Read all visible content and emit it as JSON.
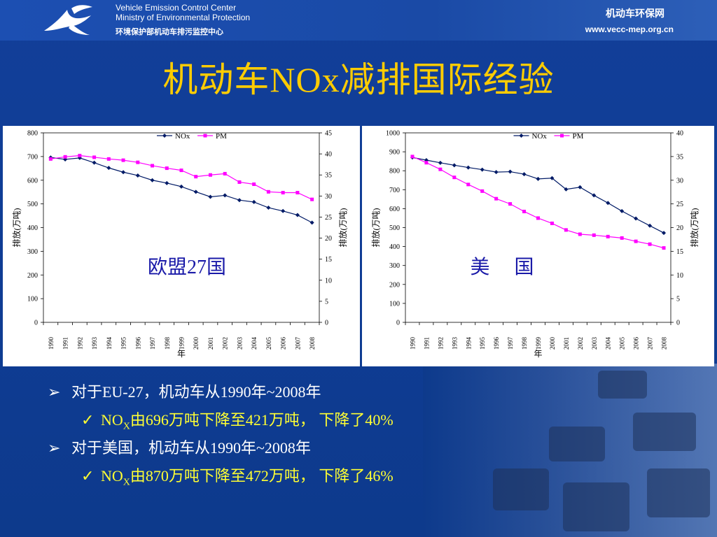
{
  "header": {
    "org_en_1": "Vehicle Emission Control Center",
    "org_en_2": "Ministry of Environmental Protection",
    "org_cn": "环境保护部机动车排污监控中心",
    "site_name": "机动车环保网",
    "site_url": "www.vecc-mep.org.cn"
  },
  "title": "机动车NOx减排国际经验",
  "colors": {
    "nox": "#001a66",
    "pm": "#ff00ff",
    "title": "#ffcc00",
    "region_label": "#1a1aa8"
  },
  "chart_data": [
    {
      "type": "line",
      "region_label": "欧盟27国",
      "x": [
        "1990",
        "1991",
        "1992",
        "1993",
        "1994",
        "1995",
        "1996",
        "1997",
        "1998",
        "1999",
        "2000",
        "2001",
        "2002",
        "2003",
        "2004",
        "2005",
        "2006",
        "2007",
        "2008"
      ],
      "xlabel": "年",
      "ylabel_left": "排放(万吨)",
      "ylabel_right": "排放(万吨)",
      "ylim_left": [
        0,
        800
      ],
      "yticks_left": [
        0,
        100,
        200,
        300,
        400,
        500,
        600,
        700,
        800
      ],
      "ylim_right": [
        0,
        45
      ],
      "yticks_right": [
        0,
        5,
        10,
        15,
        20,
        25,
        30,
        35,
        40,
        45
      ],
      "legend": "top-center",
      "series": [
        {
          "name": "NOx",
          "axis": "left",
          "values": [
            696,
            688,
            694,
            674,
            652,
            634,
            620,
            600,
            588,
            573,
            551,
            530,
            536,
            516,
            508,
            484,
            470,
            453,
            421
          ]
        },
        {
          "name": "PM",
          "axis": "right",
          "values": [
            38.8,
            39.3,
            39.6,
            39.2,
            38.8,
            38.5,
            38.0,
            37.2,
            36.6,
            36.1,
            34.6,
            35.0,
            35.3,
            33.3,
            32.8,
            31.0,
            30.8,
            30.8,
            29.2
          ]
        }
      ]
    },
    {
      "type": "line",
      "region_label": "美　 国",
      "x": [
        "1990",
        "1991",
        "1992",
        "1993",
        "1994",
        "1995",
        "1996",
        "1997",
        "1998",
        "1999",
        "2000",
        "2001",
        "2002",
        "2003",
        "2004",
        "2005",
        "2006",
        "2007",
        "2008"
      ],
      "xlabel": "年",
      "ylabel_left": "排放(万吨)",
      "ylabel_right": "排放(万吨)",
      "ylim_left": [
        0,
        1000
      ],
      "yticks_left": [
        0,
        100,
        200,
        300,
        400,
        500,
        600,
        700,
        800,
        900,
        1000
      ],
      "ylim_right": [
        0,
        40
      ],
      "yticks_right": [
        0,
        5,
        10,
        15,
        20,
        25,
        30,
        35,
        40
      ],
      "legend": "top-center",
      "series": [
        {
          "name": "NOx",
          "axis": "left",
          "values": [
            870,
            856,
            842,
            829,
            817,
            806,
            793,
            795,
            782,
            757,
            761,
            702,
            713,
            670,
            630,
            587,
            548,
            510,
            472
          ]
        },
        {
          "name": "PM",
          "axis": "right",
          "values": [
            35.0,
            33.7,
            32.3,
            30.6,
            29.1,
            27.7,
            26.1,
            25.0,
            23.4,
            22.0,
            20.9,
            19.5,
            18.6,
            18.4,
            18.1,
            17.8,
            17.1,
            16.5,
            15.7
          ]
        }
      ]
    }
  ],
  "bullets": [
    {
      "marker": "➢",
      "text": "对于EU-27，机动车从1990年~2008年"
    },
    {
      "marker": "✓",
      "pre": "NO",
      "sub": "X",
      "post": "由696万吨下降至421万吨， 下降了40%"
    },
    {
      "marker": "➢",
      "text": "对于美国，机动车从1990年~2008年"
    },
    {
      "marker": "✓",
      "pre": "NO",
      "sub": "X",
      "post": "由870万吨下降至472万吨， 下降了46%"
    }
  ]
}
